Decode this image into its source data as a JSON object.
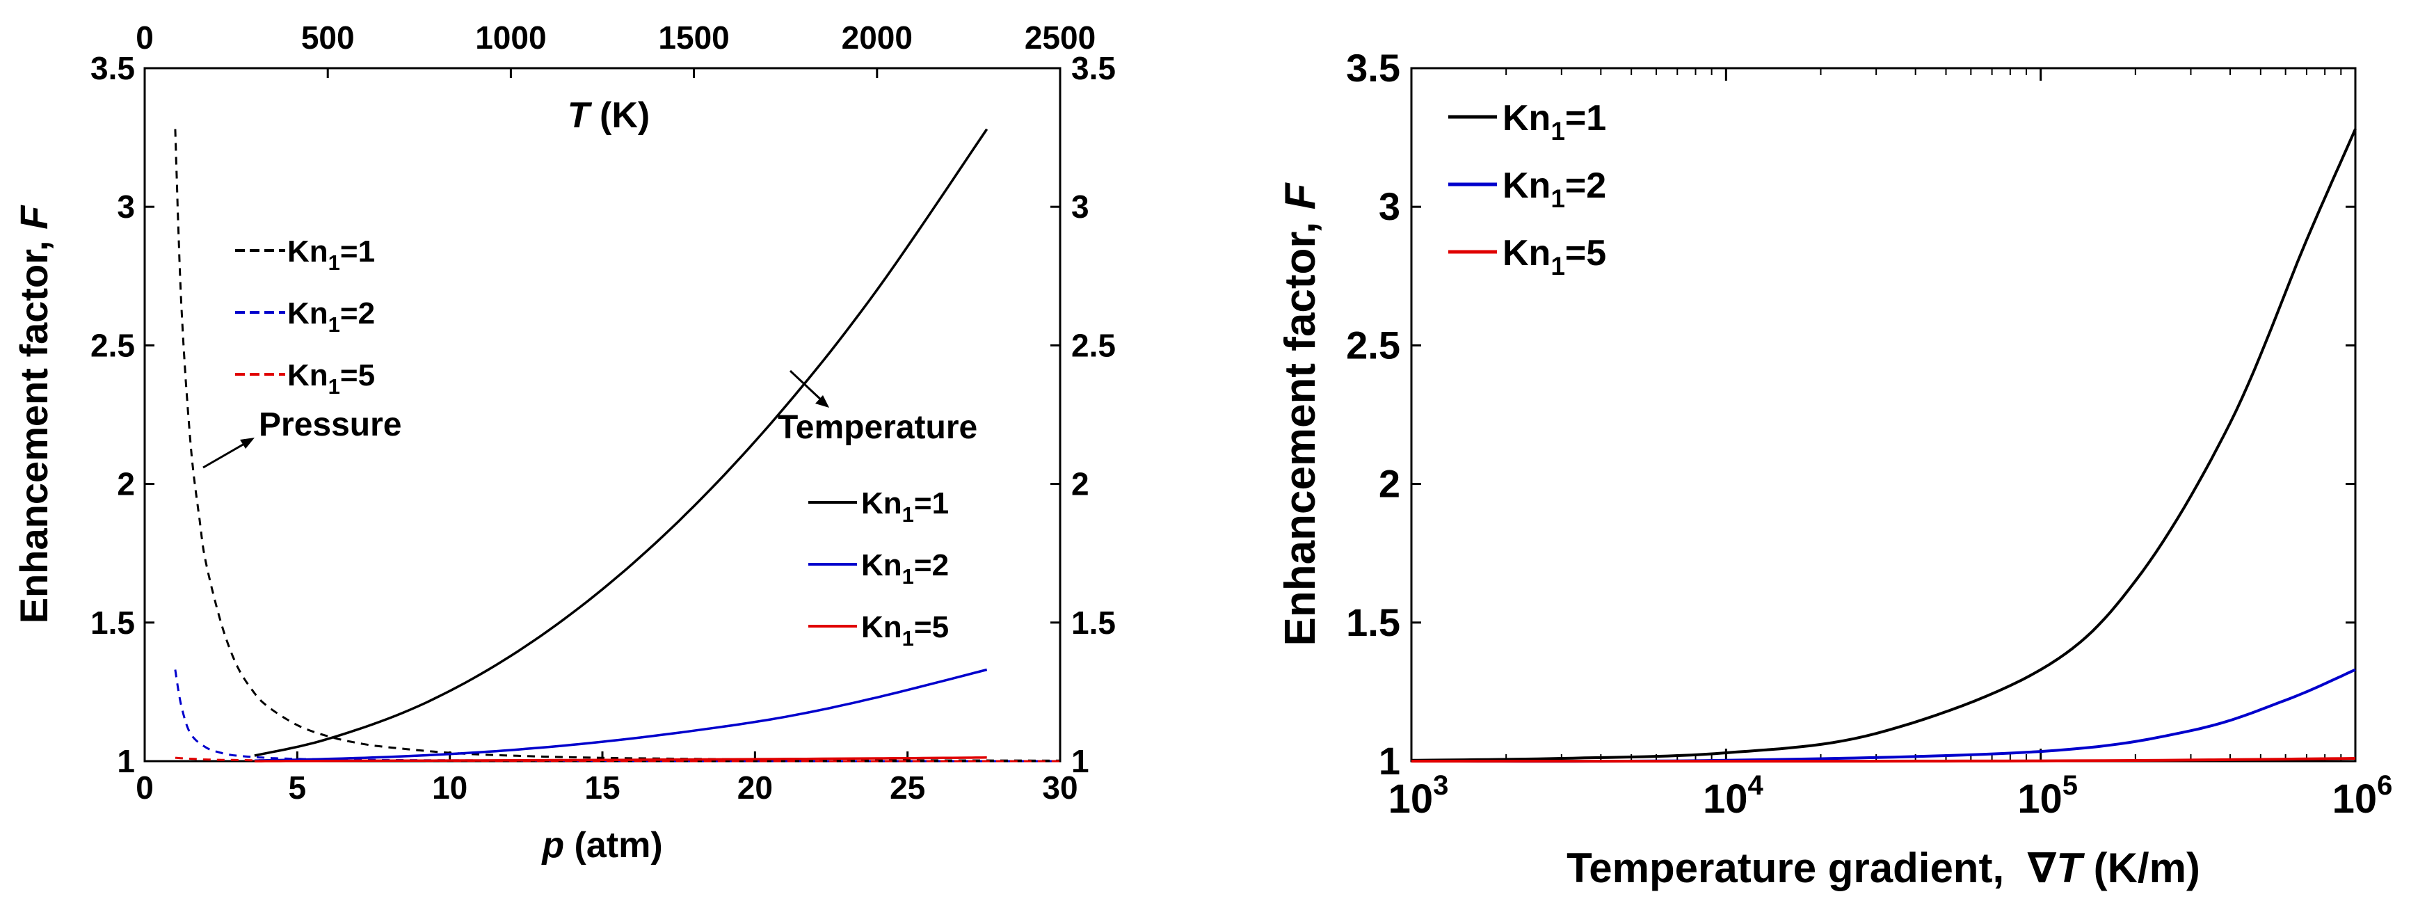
{
  "chart_data": [
    {
      "type": "line",
      "panel": "left",
      "bottom_axis": {
        "label_var": "p",
        "label_unit": " (atm)",
        "range": [
          0,
          30
        ],
        "ticks": [
          0,
          5,
          10,
          15,
          20,
          25,
          30
        ]
      },
      "top_axis": {
        "label_var": "T",
        "label_unit": " (K)",
        "range": [
          0,
          2500
        ],
        "ticks": [
          0,
          500,
          1000,
          1500,
          2000,
          2500
        ]
      },
      "left_axis": {
        "label": "Enhancement factor, ",
        "label_var": "F",
        "range": [
          1,
          3.5
        ],
        "ticks": [
          "1",
          "1.5",
          "2",
          "2.5",
          "3",
          "3.5"
        ]
      },
      "right_axis": {
        "range": [
          1,
          3.5
        ],
        "ticks": [
          "1",
          "1.5",
          "2",
          "2.5",
          "3",
          "3.5"
        ]
      },
      "grid": false,
      "annotations": {
        "pressure": "Pressure",
        "temperature": "Temperature"
      },
      "legend_pressure": {
        "placement": "upper-left",
        "entries": [
          {
            "text": "Kn",
            "sub": "1",
            "suffix": "=1",
            "color": "#000000",
            "style": "dashed"
          },
          {
            "text": "Kn",
            "sub": "1",
            "suffix": "=2",
            "color": "#0000cc",
            "style": "dashed"
          },
          {
            "text": "Kn",
            "sub": "1",
            "suffix": "=5",
            "color": "#e00000",
            "style": "dashed"
          }
        ]
      },
      "legend_temperature": {
        "placement": "lower-right",
        "entries": [
          {
            "text": "Kn",
            "sub": "1",
            "suffix": "=1",
            "color": "#000000",
            "style": "solid"
          },
          {
            "text": "Kn",
            "sub": "1",
            "suffix": "=2",
            "color": "#0000cc",
            "style": "solid"
          },
          {
            "text": "Kn",
            "sub": "1",
            "suffix": "=5",
            "color": "#e00000",
            "style": "solid"
          }
        ]
      },
      "series_pressure": [
        {
          "color": "#000000",
          "x": [
            1,
            1.2,
            1.5,
            1.8,
            2,
            2.5,
            3,
            3.5,
            4,
            5,
            6,
            7,
            8,
            10,
            12,
            15,
            20,
            25,
            30
          ],
          "y": [
            3.28,
            2.65,
            2.15,
            1.87,
            1.72,
            1.5,
            1.35,
            1.26,
            1.2,
            1.13,
            1.09,
            1.065,
            1.05,
            1.03,
            1.02,
            1.012,
            1.006,
            1.003,
            1.002
          ]
        },
        {
          "color": "#0000cc",
          "x": [
            1,
            1.2,
            1.5,
            2,
            2.5,
            3,
            4,
            5,
            6,
            8,
            10,
            15,
            20,
            30
          ],
          "y": [
            1.33,
            1.2,
            1.1,
            1.05,
            1.03,
            1.02,
            1.012,
            1.008,
            1.006,
            1.004,
            1.003,
            1.001,
            1.0,
            1.0
          ]
        },
        {
          "color": "#e00000",
          "x": [
            1,
            2,
            3,
            5,
            10,
            20,
            30
          ],
          "y": [
            1.012,
            1.006,
            1.004,
            1.002,
            1.001,
            1.0,
            1.0
          ]
        }
      ],
      "series_temperature": [
        {
          "color": "#000000",
          "x": [
            300,
            500,
            750,
            1000,
            1250,
            1500,
            1750,
            2000,
            2300
          ],
          "y": [
            1.02,
            1.08,
            1.2,
            1.38,
            1.62,
            1.92,
            2.28,
            2.7,
            3.28
          ]
        },
        {
          "color": "#0000cc",
          "x": [
            300,
            500,
            750,
            1000,
            1250,
            1500,
            1750,
            2000,
            2300
          ],
          "y": [
            1.002,
            1.008,
            1.02,
            1.04,
            1.07,
            1.11,
            1.16,
            1.23,
            1.33
          ]
        },
        {
          "color": "#e00000",
          "x": [
            300,
            500,
            1000,
            1500,
            2000,
            2300
          ],
          "y": [
            1.0,
            1.001,
            1.003,
            1.006,
            1.01,
            1.013
          ]
        }
      ]
    },
    {
      "type": "line",
      "panel": "right",
      "x_axis": {
        "label": "Temperature gradient,  ∇",
        "label_var": "T",
        "label_unit": " (K/m)",
        "scale": "log",
        "range": [
          1000,
          1000000
        ],
        "tick_exponents": [
          "3",
          "4",
          "5",
          "6"
        ],
        "tick_base": "10"
      },
      "y_axis": {
        "label": "Enhancement factor, ",
        "label_var": "F",
        "range": [
          1,
          3.5
        ],
        "ticks": [
          "1",
          "1.5",
          "2",
          "2.5",
          "3",
          "3.5"
        ]
      },
      "grid": false,
      "legend": {
        "placement": "upper-left",
        "entries": [
          {
            "text": "Kn",
            "sub": "1",
            "suffix": "=1",
            "color": "#000000",
            "style": "solid"
          },
          {
            "text": "Kn",
            "sub": "1",
            "suffix": "=2",
            "color": "#0000cc",
            "style": "solid"
          },
          {
            "text": "Kn",
            "sub": "1",
            "suffix": "=5",
            "color": "#e00000",
            "style": "solid"
          }
        ]
      },
      "series": [
        {
          "color": "#000000",
          "x": [
            1000,
            3000,
            10000,
            30000,
            100000,
            200000,
            400000,
            700000,
            1000000
          ],
          "y": [
            1.003,
            1.01,
            1.03,
            1.1,
            1.33,
            1.65,
            2.22,
            2.88,
            3.28
          ]
        },
        {
          "color": "#0000cc",
          "x": [
            1000,
            10000,
            100000,
            300000,
            600000,
            1000000
          ],
          "y": [
            1.0,
            1.003,
            1.035,
            1.11,
            1.22,
            1.33
          ]
        },
        {
          "color": "#e00000",
          "x": [
            1000,
            100000,
            1000000
          ],
          "y": [
            1.0,
            1.001,
            1.01
          ]
        }
      ]
    }
  ]
}
